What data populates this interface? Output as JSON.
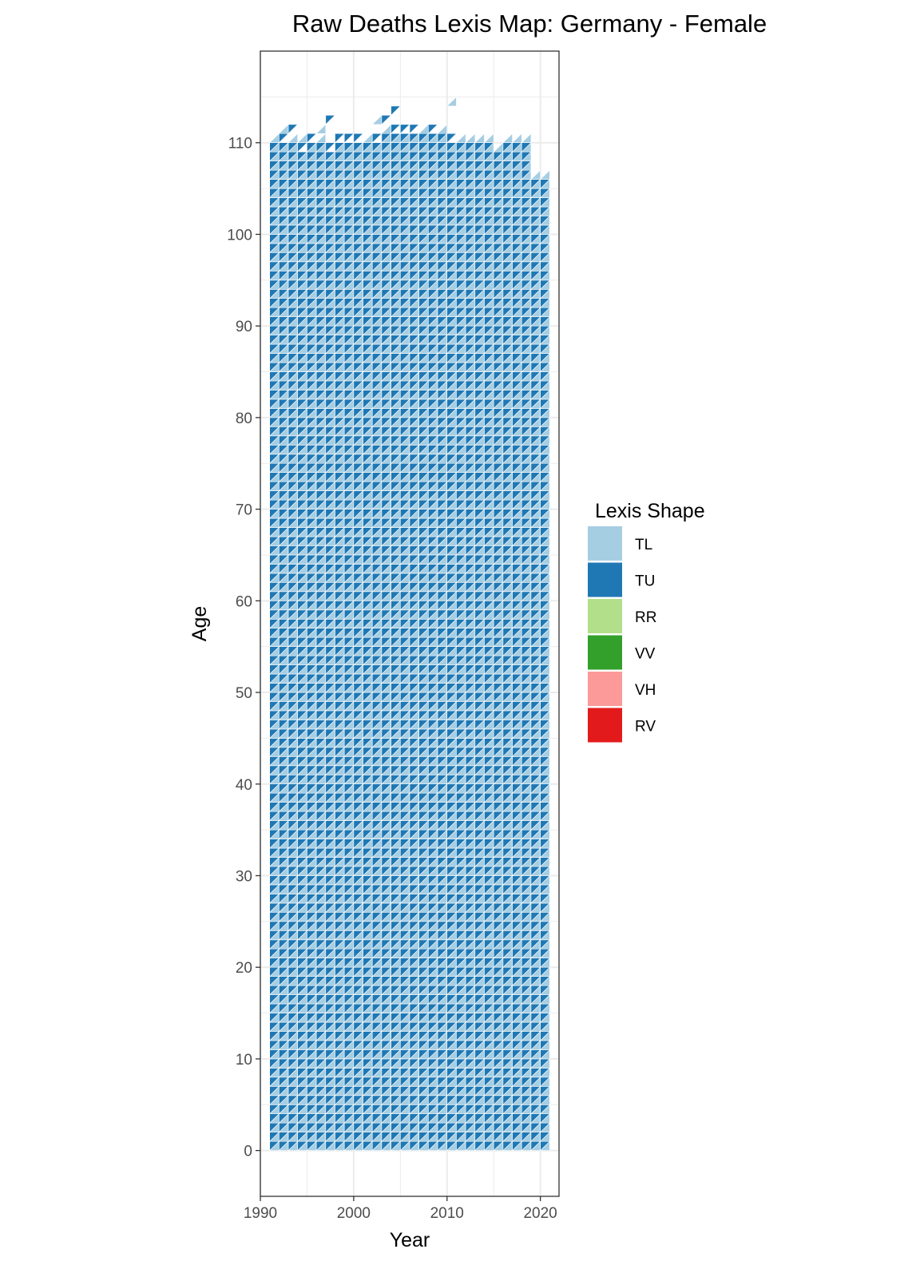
{
  "chart_data": {
    "type": "heatmap",
    "title": "Raw Deaths Lexis Map: Germany - Female",
    "xlabel": "Year",
    "ylabel": "Age",
    "xlim": [
      1990,
      2022
    ],
    "ylim": [
      -5,
      120
    ],
    "xticks": [
      1990,
      2000,
      2010,
      2020
    ],
    "yticks": [
      0,
      10,
      20,
      30,
      40,
      50,
      60,
      70,
      80,
      90,
      100,
      110
    ],
    "grid": true,
    "year_start": 1991,
    "year_end": 2020,
    "age_start": 0,
    "top_profile": [
      {
        "year": 1991,
        "tops": [
          {
            "age": 110,
            "shape": "TL"
          }
        ]
      },
      {
        "year": 1992,
        "tops": [
          {
            "age": 110,
            "shape": "TU"
          },
          {
            "age": 111,
            "shape": "TL"
          }
        ]
      },
      {
        "year": 1993,
        "tops": [
          {
            "age": 110,
            "shape": "TL"
          },
          {
            "age": 111,
            "shape": "TU"
          }
        ]
      },
      {
        "year": 1994,
        "tops": [
          {
            "age": 109,
            "shape": "TU"
          },
          {
            "age": 110,
            "shape": "TL"
          }
        ]
      },
      {
        "year": 1995,
        "tops": [
          {
            "age": 110,
            "shape": "TU"
          }
        ]
      },
      {
        "year": 1996,
        "tops": [
          {
            "age": 110,
            "shape": "TL"
          },
          {
            "age": 111,
            "shape": "TL"
          }
        ]
      },
      {
        "year": 1997,
        "tops": [
          {
            "age": 109,
            "shape": "TU"
          },
          {
            "age": 112,
            "shape": "TU"
          }
        ]
      },
      {
        "year": 1998,
        "tops": [
          {
            "age": 110,
            "shape": "TU"
          }
        ]
      },
      {
        "year": 1999,
        "tops": [
          {
            "age": 110,
            "shape": "TU"
          }
        ]
      },
      {
        "year": 2000,
        "tops": [
          {
            "age": 110,
            "shape": "TU"
          }
        ]
      },
      {
        "year": 2001,
        "tops": [
          {
            "age": 110,
            "shape": "TL"
          }
        ]
      },
      {
        "year": 2002,
        "tops": [
          {
            "age": 110,
            "shape": "TU"
          },
          {
            "age": 112,
            "shape": "TL"
          }
        ]
      },
      {
        "year": 2003,
        "tops": [
          {
            "age": 111,
            "shape": "TL"
          },
          {
            "age": 112,
            "shape": "TU"
          }
        ]
      },
      {
        "year": 2004,
        "tops": [
          {
            "age": 111,
            "shape": "TU"
          },
          {
            "age": 113,
            "shape": "TU"
          }
        ]
      },
      {
        "year": 2005,
        "tops": [
          {
            "age": 111,
            "shape": "TU"
          }
        ]
      },
      {
        "year": 2006,
        "tops": [
          {
            "age": 111,
            "shape": "TU"
          }
        ]
      },
      {
        "year": 2007,
        "tops": [
          {
            "age": 111,
            "shape": "TL"
          }
        ]
      },
      {
        "year": 2008,
        "tops": [
          {
            "age": 111,
            "shape": "TU"
          }
        ]
      },
      {
        "year": 2009,
        "tops": [
          {
            "age": 111,
            "shape": "TL"
          }
        ]
      },
      {
        "year": 2010,
        "tops": [
          {
            "age": 110,
            "shape": "TU"
          },
          {
            "age": 114,
            "shape": "TL"
          }
        ]
      },
      {
        "year": 2011,
        "tops": [
          {
            "age": 110,
            "shape": "TL"
          }
        ]
      },
      {
        "year": 2012,
        "tops": [
          {
            "age": 110,
            "shape": "TL"
          }
        ]
      },
      {
        "year": 2013,
        "tops": [
          {
            "age": 110,
            "shape": "TL"
          }
        ]
      },
      {
        "year": 2014,
        "tops": [
          {
            "age": 110,
            "shape": "TL"
          }
        ]
      },
      {
        "year": 2015,
        "tops": [
          {
            "age": 109,
            "shape": "TL"
          }
        ]
      },
      {
        "year": 2016,
        "tops": [
          {
            "age": 110,
            "shape": "TL"
          }
        ]
      },
      {
        "year": 2017,
        "tops": [
          {
            "age": 110,
            "shape": "TL"
          }
        ]
      },
      {
        "year": 2018,
        "tops": [
          {
            "age": 110,
            "shape": "TL"
          }
        ]
      },
      {
        "year": 2019,
        "tops": [
          {
            "age": 106,
            "shape": "TL"
          }
        ]
      },
      {
        "year": 2020,
        "tops": [
          {
            "age": 106,
            "shape": "TL"
          }
        ]
      }
    ],
    "legend": {
      "title": "Lexis Shape",
      "placement": "right",
      "items": [
        {
          "label": "TL",
          "color": "#a6cee3"
        },
        {
          "label": "TU",
          "color": "#1f78b4"
        },
        {
          "label": "RR",
          "color": "#b2df8a"
        },
        {
          "label": "VV",
          "color": "#33a02c"
        },
        {
          "label": "VH",
          "color": "#fb9a99"
        },
        {
          "label": "RV",
          "color": "#e31a1c"
        }
      ]
    }
  }
}
